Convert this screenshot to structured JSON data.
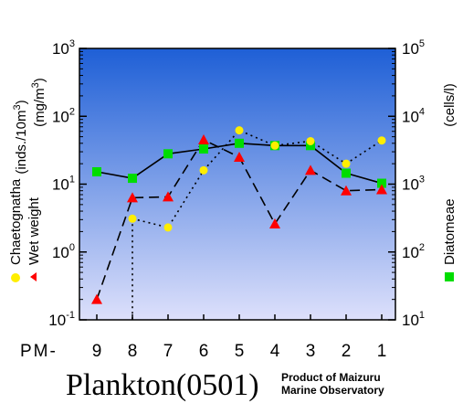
{
  "chart_data": {
    "type": "line",
    "title": "Plankton(0501)",
    "credit_lines": [
      "Product of Maizuru",
      "Marine Observatory"
    ],
    "station_prefix": "PM-",
    "categories": [
      "9",
      "8",
      "7",
      "6",
      "5",
      "4",
      "3",
      "2",
      "1"
    ],
    "left_axis": {
      "scale": "log",
      "ylim": [
        0.1,
        1000
      ],
      "ticks": [
        {
          "base": "10",
          "exp": "-1"
        },
        {
          "base": "10",
          "exp": "0"
        },
        {
          "base": "10",
          "exp": "1"
        },
        {
          "base": "10",
          "exp": "2"
        },
        {
          "base": "10",
          "exp": "3"
        }
      ],
      "label_line1": "(inds./10m",
      "label_line1_sup": "3",
      "label_line1_end": ")",
      "label_line2": "(mg/m",
      "label_line2_sup": "3",
      "label_line2_end": ")"
    },
    "right_axis": {
      "scale": "log",
      "ylim": [
        10,
        100000
      ],
      "ticks": [
        {
          "base": "10",
          "exp": "1"
        },
        {
          "base": "10",
          "exp": "2"
        },
        {
          "base": "10",
          "exp": "3"
        },
        {
          "base": "10",
          "exp": "4"
        },
        {
          "base": "10",
          "exp": "5"
        }
      ],
      "label": "(cells/l)"
    },
    "series": [
      {
        "name": "Chaetognatha",
        "axis": "left",
        "marker": "circle",
        "color": "#ffee00",
        "line_style": "dotted",
        "values": [
          null,
          3.1,
          2.3,
          16,
          62,
          37,
          43,
          20,
          44
        ]
      },
      {
        "name": "Wet weight",
        "axis": "left",
        "marker": "triangle",
        "color": "#ff0000",
        "line_style": "dashed",
        "values": [
          0.2,
          6.3,
          6.5,
          45,
          25,
          2.6,
          16,
          8,
          8.3
        ]
      },
      {
        "name": "Diatomeae",
        "axis": "right",
        "marker": "square",
        "color": "#00dd00",
        "line_style": "solid",
        "values": [
          1520,
          1220,
          2800,
          3300,
          4000,
          3700,
          3700,
          1450,
          1030
        ]
      }
    ],
    "colors": {
      "plot_bg_top": "#1e5fd6",
      "plot_bg_bottom": "#dde0fb"
    }
  }
}
